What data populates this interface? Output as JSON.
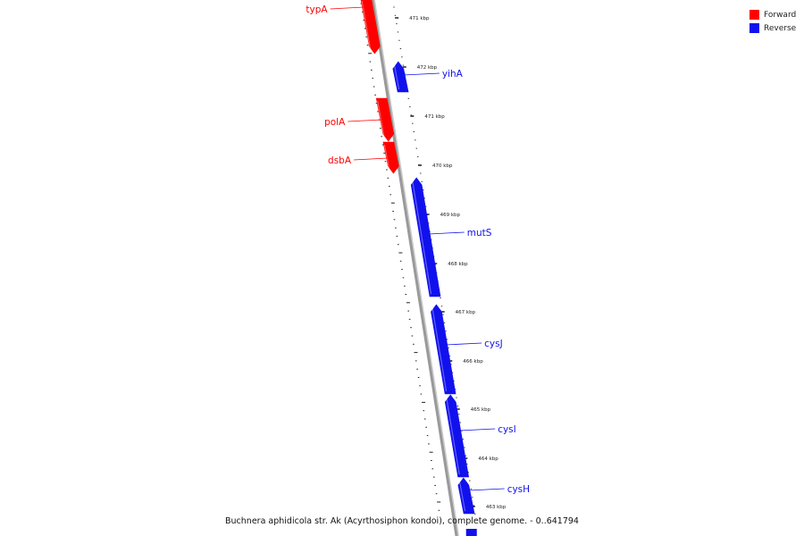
{
  "colors": {
    "forward": "#ff0000",
    "reverse": "#1111ee",
    "backbone": "#999999"
  },
  "legend": [
    {
      "label": "Forward",
      "color": "#ff0000"
    },
    {
      "label": "Reverse",
      "color": "#1111ee"
    }
  ],
  "caption": "Buchnera aphidicola str. Ak (Acyrthosiphon kondoi), complete genome. - 0..641794",
  "ticks": [
    "471 kbp",
    "472 kbp",
    "471 kbp",
    "470 kbp",
    "469 kbp",
    "468 kbp",
    "467 kbp",
    "466 kbp",
    "465 kbp",
    "464 kbp",
    "463 kbp"
  ],
  "genes": [
    {
      "name": "typA",
      "strand": "forward"
    },
    {
      "name": "yihA",
      "strand": "reverse"
    },
    {
      "name": "polA",
      "strand": "forward"
    },
    {
      "name": "dsbA",
      "strand": "forward"
    },
    {
      "name": "mutS",
      "strand": "reverse"
    },
    {
      "name": "cysJ",
      "strand": "reverse"
    },
    {
      "name": "cysI",
      "strand": "reverse"
    },
    {
      "name": "cysH",
      "strand": "reverse"
    }
  ]
}
